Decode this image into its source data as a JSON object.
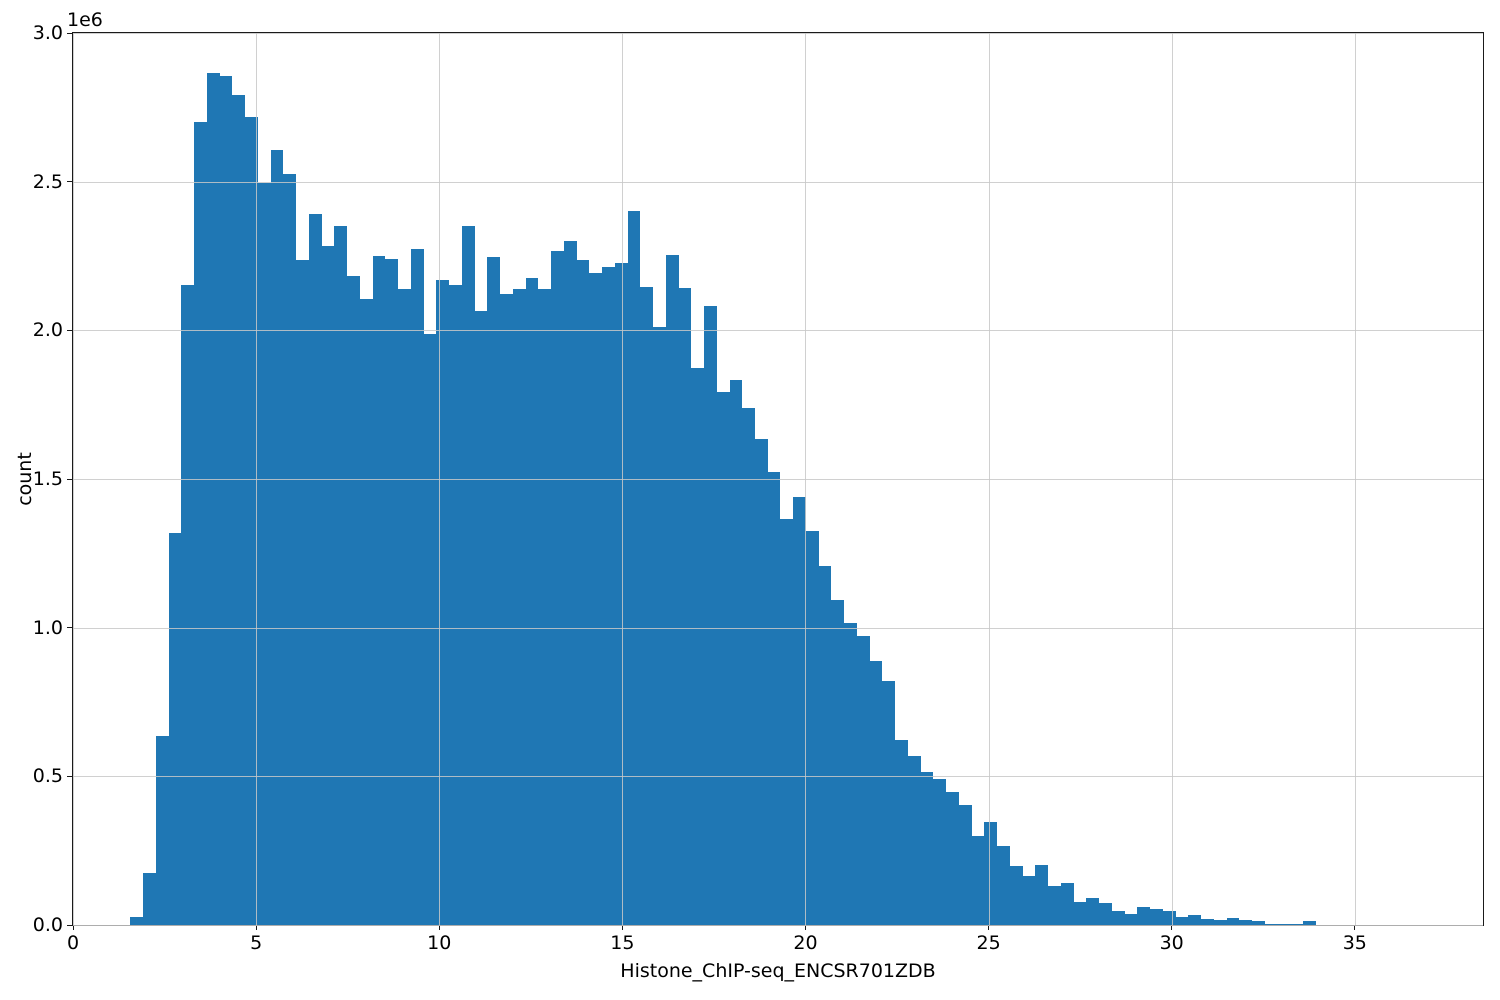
{
  "chart_data": {
    "type": "bar",
    "title": "",
    "xlabel": "Histone_ChIP-seq_ENCSR701ZDB",
    "ylabel": "count",
    "offset_text": "1e6",
    "xlim": [
      0,
      38.5
    ],
    "ylim": [
      0,
      3000000
    ],
    "xticks": [
      0,
      5,
      10,
      15,
      20,
      25,
      30,
      35
    ],
    "xtick_labels": [
      "0",
      "5",
      "10",
      "15",
      "20",
      "25",
      "30",
      "35"
    ],
    "yticks": [
      0,
      500000,
      1000000,
      1500000,
      2000000,
      2500000,
      3000000
    ],
    "ytick_labels": [
      "0.0",
      "0.5",
      "1.0",
      "1.5",
      "2.0",
      "2.5",
      "3.0"
    ],
    "grid": true,
    "legend": "none",
    "bar_color": "#1f77b4",
    "grid_color": "#c8c8c8",
    "histogram": {
      "x_start": 1.57,
      "bin_width": 0.348,
      "counts": [
        27000,
        175000,
        635000,
        1319000,
        2154000,
        2700000,
        2865000,
        2855000,
        2790000,
        2716000,
        2495000,
        2607000,
        2527000,
        2238000,
        2392000,
        2283000,
        2350000,
        2182000,
        2107000,
        2249000,
        2240000,
        2139000,
        2275000,
        1987000,
        2168000,
        2151000,
        2350000,
        2065000,
        2247000,
        2121000,
        2138000,
        2177000,
        2138000,
        2266000,
        2302000,
        2235000,
        2193000,
        2212000,
        2225000,
        2400000,
        2145000,
        2011000,
        2252000,
        2141000,
        1875000,
        2081000,
        1793000,
        1833000,
        1740000,
        1634000,
        1522000,
        1366000,
        1441000,
        1326000,
        1209000,
        1092000,
        1016000,
        972000,
        888000,
        820000,
        622000,
        569000,
        516000,
        491000,
        449000,
        402000,
        298000,
        345000,
        267000,
        197000,
        165000,
        202000,
        130000,
        141000,
        79000,
        91000,
        74000,
        46000,
        38000,
        59000,
        54000,
        46000,
        26000,
        34000,
        21000,
        18000,
        23000,
        18000,
        14000,
        5000,
        3000,
        2000,
        13000
      ]
    }
  }
}
